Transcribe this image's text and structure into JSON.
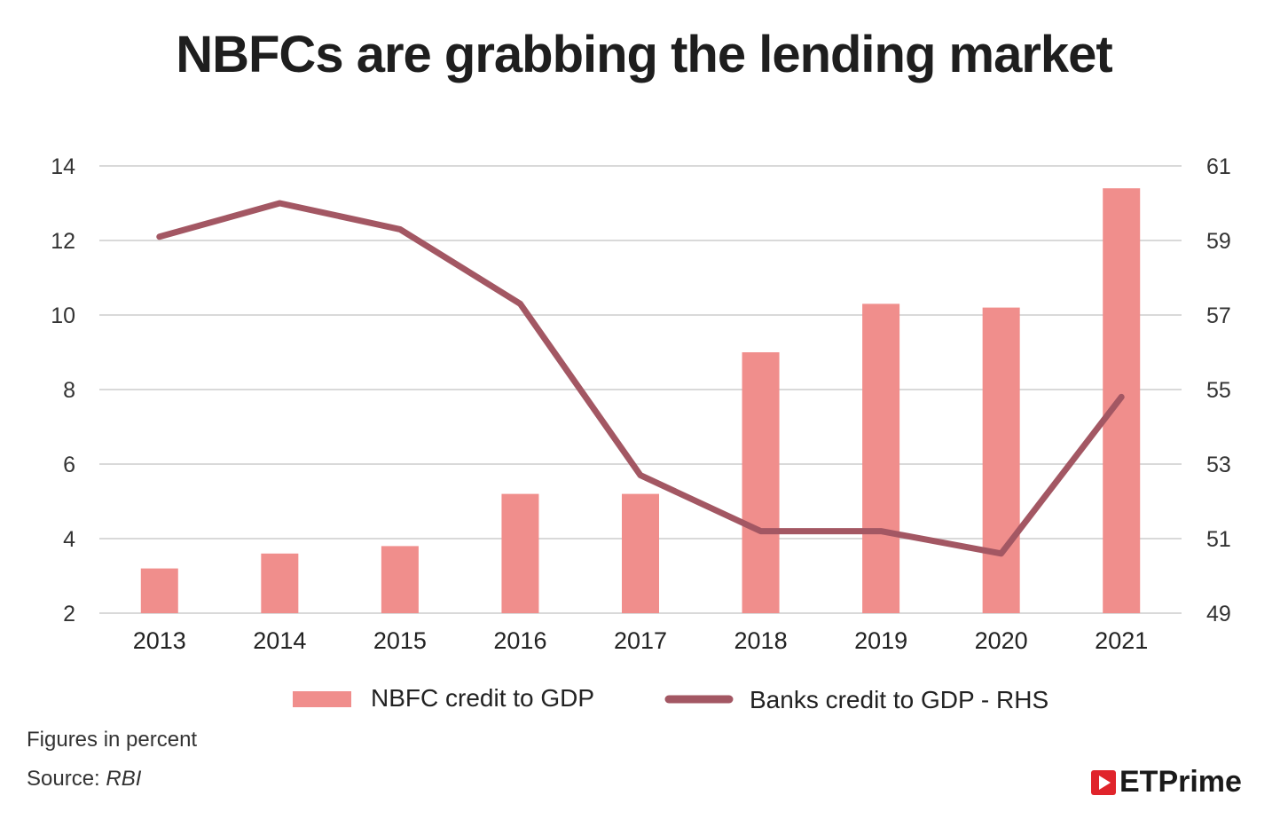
{
  "title": "NBFCs are grabbing the lending market",
  "chart_data": {
    "type": "bar+line",
    "title": "NBFCs are grabbing the lending market",
    "categories": [
      "2013",
      "2014",
      "2015",
      "2016",
      "2017",
      "2018",
      "2019",
      "2020",
      "2021"
    ],
    "series": [
      {
        "name": "NBFC credit to GDP",
        "type": "bar",
        "axis": "left",
        "color": "#f08e8c",
        "values": [
          3.2,
          3.6,
          3.8,
          5.2,
          5.2,
          9.0,
          10.3,
          10.2,
          13.4
        ]
      },
      {
        "name": "Banks credit to GDP - RHS",
        "type": "line",
        "axis": "right",
        "color": "#a35763",
        "values": [
          59.1,
          60.0,
          59.3,
          57.3,
          52.7,
          51.2,
          51.2,
          50.6,
          54.8
        ]
      }
    ],
    "ylim": [
      2,
      14
    ],
    "yticks": [
      "2",
      "4",
      "6",
      "8",
      "10",
      "12",
      "14"
    ],
    "y2lim": [
      49,
      61
    ],
    "y2ticks": [
      "49",
      "51",
      "53",
      "55",
      "57",
      "59",
      "61"
    ],
    "grid": true,
    "legend": "bottom"
  },
  "notes": {
    "figures": "Figures in percent",
    "source_label": "Source: ",
    "source": "RBI"
  },
  "logo": "ETPrime"
}
